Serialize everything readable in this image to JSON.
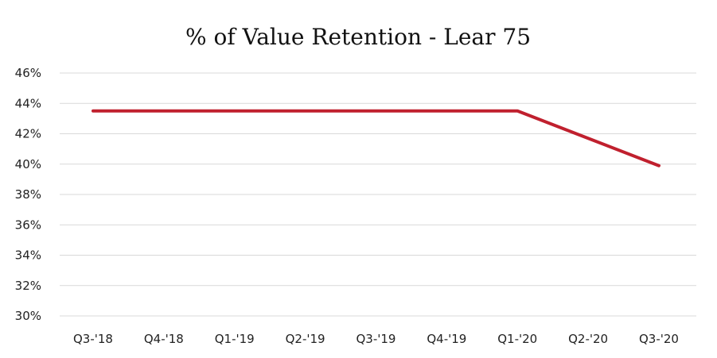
{
  "chart_data": {
    "type": "line",
    "title": "% of Value Retention - Lear 75",
    "xlabel": "",
    "ylabel": "",
    "categories": [
      "Q3-'18",
      "Q4-'18",
      "Q1-'19",
      "Q2-'19",
      "Q3-'19",
      "Q4-'19",
      "Q1-'20",
      "Q2-'20",
      "Q3-'20"
    ],
    "series": [
      {
        "values": [
          43.5,
          43.5,
          43.5,
          43.5,
          43.5,
          43.5,
          43.5,
          41.7,
          39.9
        ]
      }
    ],
    "ylim": [
      30,
      46
    ],
    "yticks": [
      30,
      32,
      34,
      36,
      38,
      40,
      42,
      44,
      46
    ],
    "ytick_labels": [
      "30%",
      "32%",
      "34%",
      "36%",
      "38%",
      "40%",
      "42%",
      "44%",
      "46%"
    ],
    "grid": true,
    "legend": "none",
    "colors": {
      "series": "#c0202e",
      "grid": "#d9d9d9",
      "text": "#222222"
    }
  }
}
